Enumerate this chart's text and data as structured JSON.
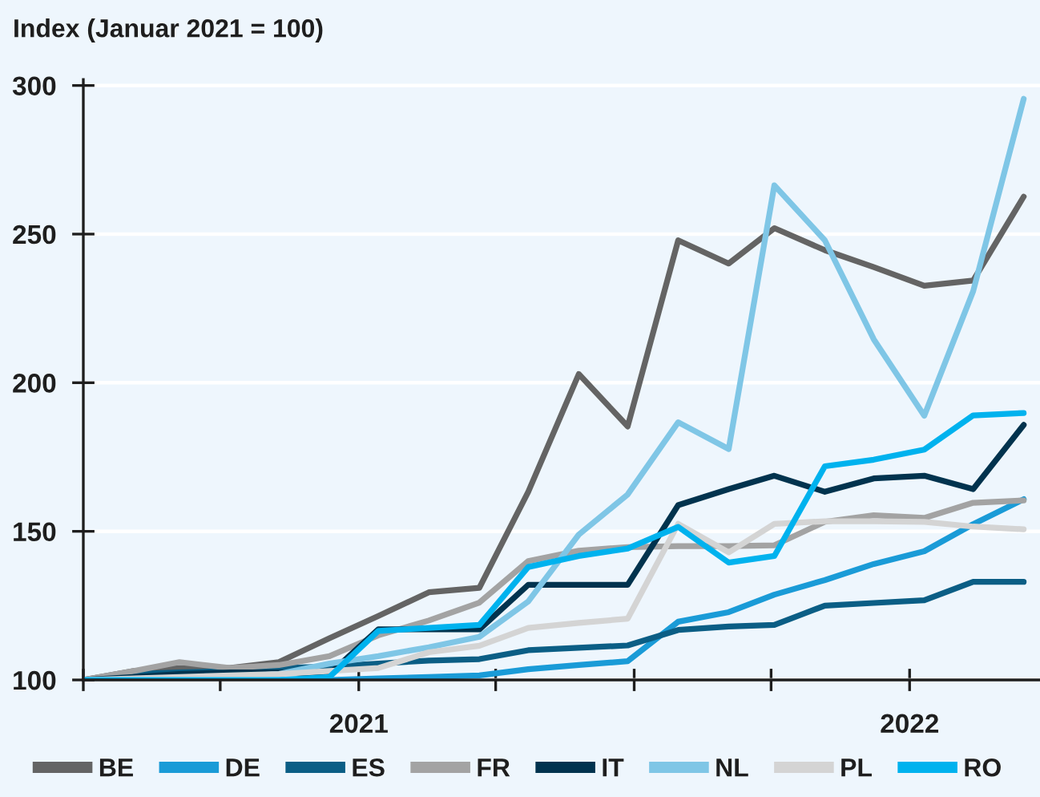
{
  "chart_data": {
    "type": "line",
    "ylabel": "Index (Januar 2021 = 100)",
    "x": [
      "2021-01",
      "2021-02",
      "2021-03",
      "2021-04",
      "2021-05",
      "2021-06",
      "2021-07",
      "2021-08",
      "2021-09",
      "2021-10",
      "2021-11",
      "2021-12",
      "2022-01",
      "2022-02",
      "2022-03",
      "2022-04",
      "2022-05",
      "2022-06",
      "2022-07",
      "2022-08"
    ],
    "xlim": [
      "2021-01-01",
      "2022-08-11"
    ],
    "xticks": [
      {
        "value": "2021-01-01",
        "label": null
      },
      {
        "value": "2021-03-26",
        "label": null
      },
      {
        "value": "2021-06-19",
        "label": "2021"
      },
      {
        "value": "2021-09-11",
        "label": null
      },
      {
        "value": "2021-12-05",
        "label": null
      },
      {
        "value": "2022-02-27",
        "label": null
      },
      {
        "value": "2022-05-23",
        "label": "2022"
      }
    ],
    "ylim": [
      100,
      302
    ],
    "yticks": [
      100,
      150,
      200,
      250,
      300
    ],
    "grid": "y",
    "legend": "bottom",
    "series": [
      {
        "name": "BE",
        "color": "#646464",
        "values": [
          100,
          103,
          104,
          104,
          106,
          114,
          121.5,
          129.5,
          131,
          163.3,
          202.9,
          185.3,
          247.9,
          240.1,
          252,
          244.6,
          238.9,
          232.6,
          234.4,
          262.6
        ]
      },
      {
        "name": "DE",
        "color": "#1a9bd7",
        "values": [
          100,
          100,
          100,
          100,
          100,
          100,
          100.5,
          101,
          101.5,
          103.6,
          105,
          106.3,
          119.6,
          122.8,
          128.7,
          133.6,
          139,
          143.3,
          152.4,
          160.8
        ]
      },
      {
        "name": "ES",
        "color": "#0b5e85",
        "values": [
          100,
          102,
          102.5,
          103,
          104,
          104.5,
          105.5,
          106.5,
          107,
          110,
          110.8,
          111.6,
          116.8,
          118,
          118.5,
          125,
          125.9,
          126.8,
          133,
          133
        ]
      },
      {
        "name": "FR",
        "color": "#a3a3a3",
        "values": [
          100,
          103,
          106,
          104,
          105,
          108,
          115,
          120,
          126,
          140,
          143.5,
          144.7,
          145,
          145,
          145.3,
          153.2,
          155.4,
          154.5,
          159.6,
          160.4
        ]
      },
      {
        "name": "IT",
        "color": "#01334e",
        "values": [
          100,
          101,
          102,
          102.5,
          102.5,
          102,
          117,
          117,
          117,
          132,
          132,
          132,
          158.8,
          164.2,
          168.7,
          163.3,
          167.8,
          168.7,
          164.2,
          185.8
        ]
      },
      {
        "name": "NL",
        "color": "#7fc6e6",
        "values": [
          100,
          100,
          100.5,
          101,
          102,
          105.5,
          108,
          111,
          114.5,
          126.4,
          148.9,
          162.4,
          186.7,
          177.7,
          266.4,
          247.9,
          214.6,
          188.9,
          230.8,
          295.5
        ]
      },
      {
        "name": "PL",
        "color": "#d4d4d4",
        "values": [
          100,
          100.5,
          101,
          101.5,
          102,
          103,
          104,
          109.3,
          111.5,
          117.5,
          119.2,
          120.6,
          152.5,
          142.9,
          152.5,
          153.4,
          153.4,
          153.2,
          151.6,
          150.7
        ]
      },
      {
        "name": "RO",
        "color": "#00b2ee",
        "values": [
          100,
          100,
          100,
          100,
          100,
          101,
          116.5,
          117.5,
          118.5,
          138,
          141.7,
          144.2,
          151.5,
          139.5,
          141.7,
          171.9,
          174.1,
          177.5,
          189,
          189.8
        ]
      }
    ]
  }
}
